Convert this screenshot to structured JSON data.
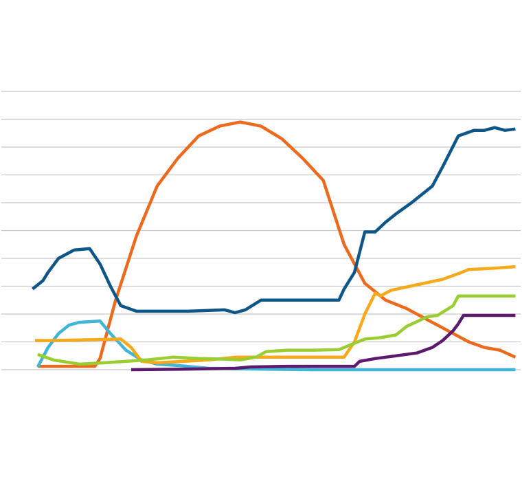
{
  "chart_data": {
    "type": "line",
    "title": "",
    "xlabel": "",
    "ylabel": "",
    "xlim": [
      0,
      100
    ],
    "ylim": [
      0,
      11
    ],
    "grid": true,
    "legend": "none",
    "y_gridlines": [
      0,
      1,
      2,
      3,
      4,
      5,
      6,
      7,
      8,
      9,
      10
    ],
    "series": [
      {
        "color": "#ec6a1e",
        "points": [
          [
            7,
            0.12
          ],
          [
            8,
            0.12
          ],
          [
            18,
            0.12
          ],
          [
            19,
            0.4
          ],
          [
            22,
            2.5
          ],
          [
            26,
            4.8
          ],
          [
            30,
            6.6
          ],
          [
            34,
            7.6
          ],
          [
            38,
            8.4
          ],
          [
            42,
            8.75
          ],
          [
            46,
            8.9
          ],
          [
            50,
            8.75
          ],
          [
            54,
            8.3
          ],
          [
            58,
            7.6
          ],
          [
            62,
            6.8
          ],
          [
            66,
            4.5
          ],
          [
            70,
            3.1
          ],
          [
            74,
            2.5
          ],
          [
            78,
            2.2
          ],
          [
            82,
            1.8
          ],
          [
            86,
            1.4
          ],
          [
            90,
            1.0
          ],
          [
            93,
            0.8
          ],
          [
            96,
            0.7
          ],
          [
            99,
            0.45
          ]
        ]
      },
      {
        "color": "#0f5688",
        "points": [
          [
            6,
            2.9
          ],
          [
            8,
            3.2
          ],
          [
            9,
            3.5
          ],
          [
            11,
            4.0
          ],
          [
            14,
            4.3
          ],
          [
            17,
            4.35
          ],
          [
            19,
            3.8
          ],
          [
            21,
            3.0
          ],
          [
            23,
            2.3
          ],
          [
            26,
            2.1
          ],
          [
            29,
            2.1
          ],
          [
            36,
            2.1
          ],
          [
            43,
            2.15
          ],
          [
            45,
            2.05
          ],
          [
            47,
            2.15
          ],
          [
            50,
            2.5
          ],
          [
            65,
            2.5
          ],
          [
            66,
            2.9
          ],
          [
            68,
            3.5
          ],
          [
            70,
            4.95
          ],
          [
            72,
            4.95
          ],
          [
            74,
            5.3
          ],
          [
            76,
            5.6
          ],
          [
            79,
            6.0
          ],
          [
            83,
            6.6
          ],
          [
            85,
            7.3
          ],
          [
            88,
            8.4
          ],
          [
            91,
            8.6
          ],
          [
            93,
            8.6
          ],
          [
            95,
            8.7
          ],
          [
            97,
            8.6
          ],
          [
            99,
            8.65
          ]
        ]
      },
      {
        "color": "#41b5d5",
        "points": [
          [
            7,
            0.1
          ],
          [
            9,
            0.8
          ],
          [
            11,
            1.3
          ],
          [
            13,
            1.6
          ],
          [
            15,
            1.7
          ],
          [
            19,
            1.75
          ],
          [
            21,
            1.3
          ],
          [
            24,
            0.7
          ],
          [
            27,
            0.35
          ],
          [
            30,
            0.2
          ],
          [
            34,
            0.15
          ],
          [
            40,
            0.05
          ],
          [
            50,
            0.02
          ],
          [
            60,
            0.0
          ],
          [
            70,
            0.0
          ],
          [
            80,
            0.0
          ],
          [
            90,
            0.0
          ],
          [
            99,
            0.0
          ]
        ]
      },
      {
        "color": "#f6a91a",
        "points": [
          [
            6.5,
            1.05
          ],
          [
            10,
            1.05
          ],
          [
            15,
            1.07
          ],
          [
            23,
            1.1
          ],
          [
            25,
            0.8
          ],
          [
            27,
            0.3
          ],
          [
            30,
            0.25
          ],
          [
            35,
            0.3
          ],
          [
            40,
            0.35
          ],
          [
            45,
            0.45
          ],
          [
            50,
            0.45
          ],
          [
            55,
            0.45
          ],
          [
            60,
            0.45
          ],
          [
            66,
            0.45
          ],
          [
            68,
            1.0
          ],
          [
            70,
            2.0
          ],
          [
            72,
            2.75
          ],
          [
            73,
            2.65
          ],
          [
            75,
            2.85
          ],
          [
            80,
            3.05
          ],
          [
            85,
            3.25
          ],
          [
            88,
            3.45
          ],
          [
            90,
            3.6
          ],
          [
            95,
            3.65
          ],
          [
            99,
            3.7
          ]
        ]
      },
      {
        "color": "#9acd32",
        "points": [
          [
            7,
            0.55
          ],
          [
            10,
            0.35
          ],
          [
            15,
            0.2
          ],
          [
            20,
            0.25
          ],
          [
            28,
            0.35
          ],
          [
            33,
            0.45
          ],
          [
            38,
            0.4
          ],
          [
            43,
            0.38
          ],
          [
            46,
            0.35
          ],
          [
            49,
            0.45
          ],
          [
            51,
            0.65
          ],
          [
            55,
            0.7
          ],
          [
            60,
            0.7
          ],
          [
            65,
            0.72
          ],
          [
            68,
            0.95
          ],
          [
            70,
            1.1
          ],
          [
            73,
            1.15
          ],
          [
            76,
            1.25
          ],
          [
            78,
            1.55
          ],
          [
            82,
            1.9
          ],
          [
            84,
            1.95
          ],
          [
            87,
            2.3
          ],
          [
            88,
            2.65
          ],
          [
            92,
            2.65
          ],
          [
            96,
            2.65
          ],
          [
            99,
            2.65
          ]
        ]
      },
      {
        "color": "#5c1a6e",
        "points": [
          [
            25,
            0.0
          ],
          [
            35,
            0.02
          ],
          [
            45,
            0.05
          ],
          [
            48,
            0.1
          ],
          [
            55,
            0.12
          ],
          [
            60,
            0.12
          ],
          [
            68,
            0.12
          ],
          [
            69,
            0.3
          ],
          [
            72,
            0.4
          ],
          [
            76,
            0.5
          ],
          [
            80,
            0.6
          ],
          [
            83,
            0.8
          ],
          [
            85,
            1.05
          ],
          [
            87,
            1.4
          ],
          [
            88,
            1.65
          ],
          [
            89,
            1.95
          ],
          [
            93,
            1.95
          ],
          [
            96,
            1.95
          ],
          [
            99,
            1.95
          ]
        ]
      }
    ]
  }
}
